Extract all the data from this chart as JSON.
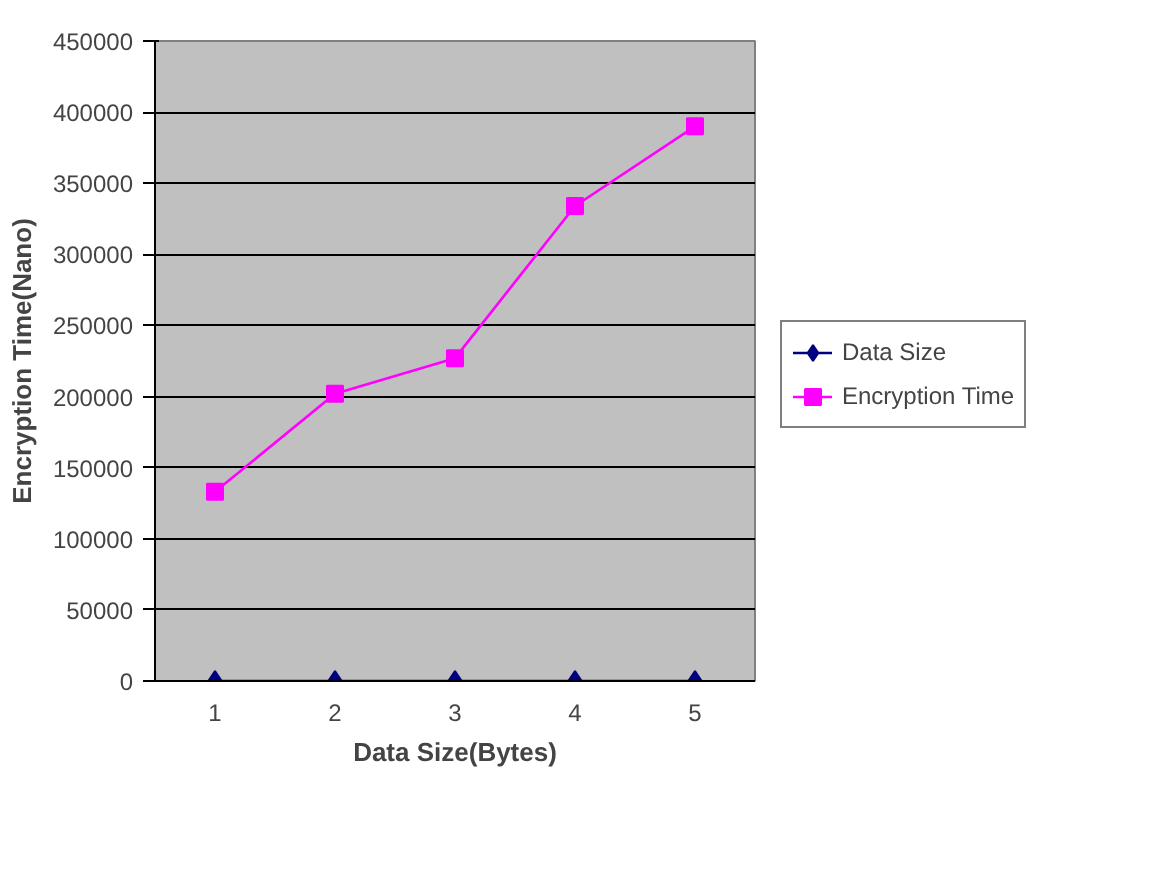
{
  "chart_data": {
    "type": "line",
    "xlabel": "Data Size(Bytes)",
    "ylabel": "Encryption Time(Nano)",
    "categories": [
      "1",
      "2",
      "3",
      "4",
      "5"
    ],
    "ylim": [
      0,
      450000
    ],
    "yticks": [
      0,
      50000,
      100000,
      150000,
      200000,
      250000,
      300000,
      350000,
      400000,
      450000
    ],
    "grid": "y",
    "legend": "right",
    "series": [
      {
        "name": "Data Size",
        "color": "#000080",
        "marker": "diamond",
        "values": [
          0,
          0,
          0,
          0,
          0
        ]
      },
      {
        "name": "Encryption Time",
        "color": "#ff00ff",
        "marker": "square",
        "values": [
          133000,
          202000,
          227000,
          334000,
          390000
        ]
      }
    ]
  }
}
